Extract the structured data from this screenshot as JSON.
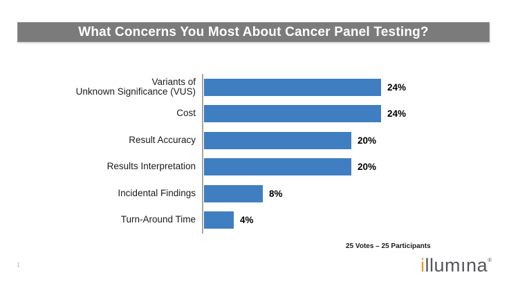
{
  "slide": {
    "title": "What Concerns You Most About Cancer Panel Testing?",
    "title_bar_color": "#7B7B7B",
    "title_text_color": "#FFFFFF",
    "background_color": "#FFFFFF",
    "page_number": "1"
  },
  "chart_data": {
    "type": "bar",
    "orientation": "horizontal",
    "title": "",
    "categories": [
      "Variants of\nUnknown Significance (VUS)",
      "Cost",
      "Result Accuracy",
      "Results Interpretation",
      "Incidental Findings",
      "Turn-Around Time"
    ],
    "values": [
      24,
      24,
      20,
      20,
      8,
      4
    ],
    "value_labels": [
      "24%",
      "24%",
      "20%",
      "20%",
      "8%",
      "4%"
    ],
    "unit": "percent",
    "xlim": [
      0,
      26
    ],
    "grid": false,
    "legend": false,
    "bar_color": "#3F7EC0",
    "axis_color": "#A6A6A6",
    "note": "25 Votes – 25 Participants"
  },
  "footer": {
    "logo": {
      "first_letter": "i",
      "rest": "llumına",
      "registered_mark": "®",
      "accent_color": "#F6921E",
      "text_color": "#55565B"
    }
  }
}
